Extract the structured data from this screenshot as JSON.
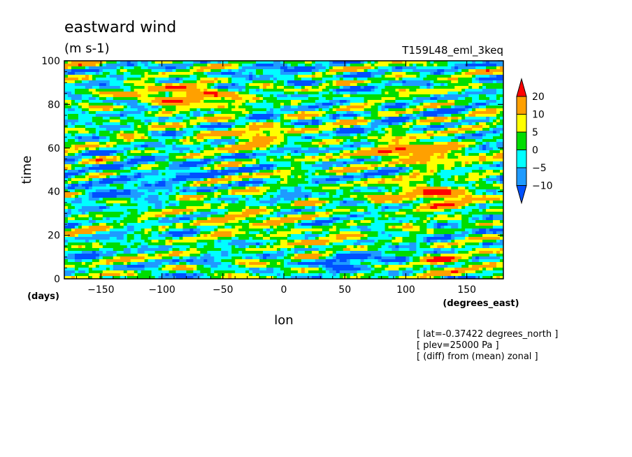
{
  "chart_data": {
    "type": "heatmap",
    "title": "eastward wind",
    "units": "(m s-1)",
    "run_name": "T159L48_eml_3keq",
    "xlabel": "lon",
    "xunits": "(degrees_east)",
    "ylabel": "time",
    "yunits": "(days)",
    "xlim": [
      -180,
      180
    ],
    "ylim": [
      0,
      100
    ],
    "xticks": [
      -150,
      -100,
      -50,
      0,
      50,
      100,
      150
    ],
    "yticks": [
      0,
      20,
      40,
      60,
      80,
      100
    ],
    "colorbar": {
      "levels": [
        -10,
        -5,
        0,
        5,
        10,
        20
      ],
      "tick_labels": [
        "20",
        "10",
        "5",
        "0",
        "−5",
        "−10"
      ],
      "colors": [
        "#0050ff",
        "#1e9bff",
        "#00ffff",
        "#00dd00",
        "#ffff00",
        "#ffa000",
        "#ff0000"
      ]
    },
    "notes": [
      "[ lat=-0.37422 degrees_north ]",
      "[ plev=25000 Pa ]",
      "[ (diff) from (mean) zonal ]"
    ],
    "field_features": [
      {
        "lon": -80,
        "time": 84,
        "value": 22
      },
      {
        "lon": -30,
        "time": 66,
        "value": 12
      },
      {
        "lon": -40,
        "time": 28,
        "value": 11
      },
      {
        "lon": 110,
        "time": 58,
        "value": 22
      },
      {
        "lon": 125,
        "time": 38,
        "value": 21
      },
      {
        "lon": 140,
        "time": 6,
        "value": 11
      },
      {
        "lon": 20,
        "time": 18,
        "value": 8
      },
      {
        "lon": -140,
        "time": 42,
        "value": -11
      },
      {
        "lon": -90,
        "time": 50,
        "value": -9
      },
      {
        "lon": 60,
        "time": 8,
        "value": -10
      },
      {
        "lon": 0,
        "time": 95,
        "value": -6
      }
    ]
  }
}
